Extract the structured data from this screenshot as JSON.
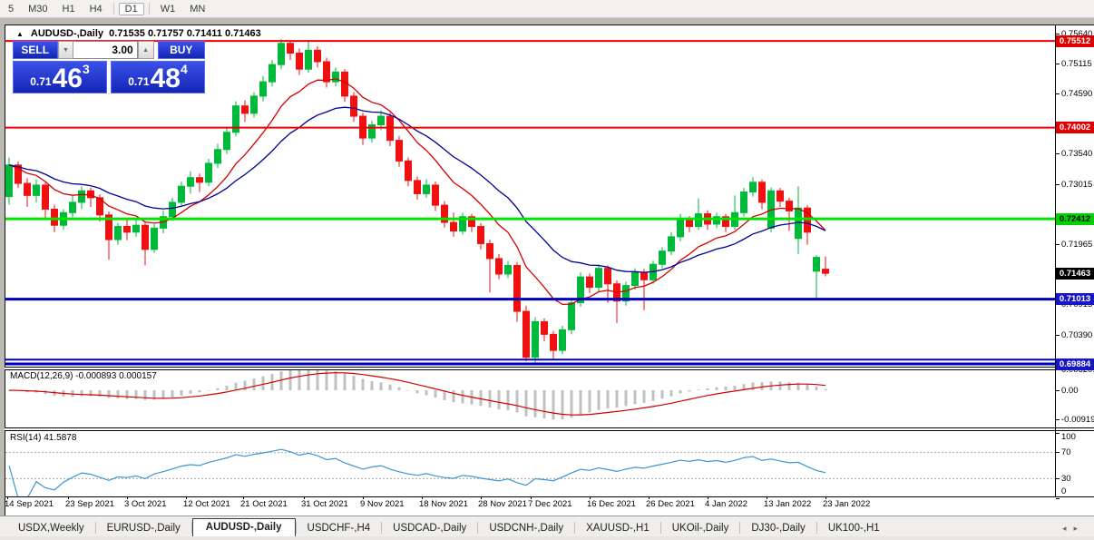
{
  "toolbar": {
    "timeframes": [
      "5",
      "M30",
      "H1",
      "H4",
      "D1",
      "W1",
      "MN"
    ],
    "active_timeframe": "D1"
  },
  "chart_window": {
    "menu_triangle_glyph": "▲",
    "title": "AUDUSD-,Daily",
    "ohlc_text": "0.71535 0.71757 0.71411 0.71463",
    "trade_panel": {
      "sell_label": "SELL",
      "buy_label": "BUY",
      "volume": "3.00",
      "spin_down_glyph": "▼",
      "spin_up_glyph": "▲",
      "sell_price": {
        "prefix": "0.71",
        "big": "46",
        "sup": "3"
      },
      "buy_price": {
        "prefix": "0.71",
        "big": "48",
        "sup": "4"
      }
    }
  },
  "chart_data": {
    "type": "candlestick",
    "symbol": "AUDUSD-",
    "timeframe": "Daily",
    "colors": {
      "up": "#00b93a",
      "down": "#f01010",
      "ma_fast": "#d40000",
      "ma_slow": "#000096",
      "macd_hist": "#c0c0c0",
      "macd_signal": "#d40000",
      "rsi_line": "#3a96d4"
    },
    "candles": [
      [
        0.728,
        0.7348,
        0.7266,
        0.7335
      ],
      [
        0.7335,
        0.7341,
        0.7295,
        0.7303
      ],
      [
        0.7303,
        0.7312,
        0.7262,
        0.7282
      ],
      [
        0.7282,
        0.731,
        0.727,
        0.73
      ],
      [
        0.73,
        0.7304,
        0.724,
        0.7258
      ],
      [
        0.7258,
        0.7266,
        0.7218,
        0.723
      ],
      [
        0.723,
        0.7258,
        0.7222,
        0.7252
      ],
      [
        0.7252,
        0.7282,
        0.7244,
        0.727
      ],
      [
        0.727,
        0.7298,
        0.7258,
        0.729
      ],
      [
        0.729,
        0.7296,
        0.7262,
        0.7278
      ],
      [
        0.7278,
        0.7284,
        0.7236,
        0.7248
      ],
      [
        0.7248,
        0.7254,
        0.717,
        0.7205
      ],
      [
        0.7205,
        0.7234,
        0.7196,
        0.7228
      ],
      [
        0.7228,
        0.724,
        0.7204,
        0.7218
      ],
      [
        0.7218,
        0.7242,
        0.721,
        0.723
      ],
      [
        0.723,
        0.7236,
        0.716,
        0.7188
      ],
      [
        0.7188,
        0.7232,
        0.7182,
        0.7225
      ],
      [
        0.7225,
        0.7256,
        0.7216,
        0.7245
      ],
      [
        0.7245,
        0.7278,
        0.7238,
        0.727
      ],
      [
        0.727,
        0.7306,
        0.7262,
        0.7298
      ],
      [
        0.7298,
        0.7324,
        0.7285,
        0.7313
      ],
      [
        0.7313,
        0.732,
        0.7288,
        0.7305
      ],
      [
        0.7305,
        0.7346,
        0.7298,
        0.7338
      ],
      [
        0.7338,
        0.7372,
        0.733,
        0.7362
      ],
      [
        0.7362,
        0.74,
        0.7354,
        0.7392
      ],
      [
        0.7392,
        0.7446,
        0.7385,
        0.7438
      ],
      [
        0.7438,
        0.7448,
        0.741,
        0.7425
      ],
      [
        0.7425,
        0.7462,
        0.7418,
        0.7455
      ],
      [
        0.7455,
        0.749,
        0.7446,
        0.748
      ],
      [
        0.748,
        0.7518,
        0.7472,
        0.751
      ],
      [
        0.751,
        0.7555,
        0.7502,
        0.7547
      ],
      [
        0.7547,
        0.7552,
        0.7518,
        0.753
      ],
      [
        0.753,
        0.7538,
        0.7492,
        0.7502
      ],
      [
        0.7502,
        0.755,
        0.7496,
        0.7535
      ],
      [
        0.7535,
        0.7542,
        0.7505,
        0.7515
      ],
      [
        0.7515,
        0.7522,
        0.747,
        0.748
      ],
      [
        0.748,
        0.7505,
        0.7472,
        0.7497
      ],
      [
        0.7497,
        0.7502,
        0.7445,
        0.7455
      ],
      [
        0.7455,
        0.7462,
        0.741,
        0.742
      ],
      [
        0.742,
        0.7426,
        0.737,
        0.7382
      ],
      [
        0.7382,
        0.7412,
        0.7374,
        0.7405
      ],
      [
        0.7405,
        0.743,
        0.7396,
        0.742
      ],
      [
        0.742,
        0.7426,
        0.7368,
        0.7378
      ],
      [
        0.7378,
        0.7386,
        0.7332,
        0.7342
      ],
      [
        0.7342,
        0.7348,
        0.7298,
        0.7308
      ],
      [
        0.7308,
        0.7315,
        0.7275,
        0.7285
      ],
      [
        0.7285,
        0.731,
        0.7278,
        0.73
      ],
      [
        0.73,
        0.7306,
        0.7255,
        0.7265
      ],
      [
        0.7265,
        0.7272,
        0.7226,
        0.7235
      ],
      [
        0.7235,
        0.7252,
        0.721,
        0.722
      ],
      [
        0.722,
        0.7252,
        0.7214,
        0.7245
      ],
      [
        0.7245,
        0.725,
        0.7218,
        0.7228
      ],
      [
        0.7228,
        0.7234,
        0.7188,
        0.7198
      ],
      [
        0.7198,
        0.7205,
        0.7113,
        0.7172
      ],
      [
        0.7172,
        0.718,
        0.7136,
        0.7145
      ],
      [
        0.7145,
        0.7168,
        0.7138,
        0.716
      ],
      [
        0.716,
        0.7166,
        0.7062,
        0.708
      ],
      [
        0.708,
        0.709,
        0.6993,
        0.7
      ],
      [
        0.7,
        0.707,
        0.6989,
        0.7062
      ],
      [
        0.7062,
        0.7068,
        0.7028,
        0.704
      ],
      [
        0.704,
        0.7046,
        0.6995,
        0.7012
      ],
      [
        0.7012,
        0.7055,
        0.7005,
        0.7048
      ],
      [
        0.7048,
        0.7102,
        0.704,
        0.7095
      ],
      [
        0.7095,
        0.7148,
        0.7088,
        0.714
      ],
      [
        0.714,
        0.7146,
        0.7112,
        0.7122
      ],
      [
        0.7122,
        0.7162,
        0.7115,
        0.7155
      ],
      [
        0.7155,
        0.716,
        0.7095,
        0.7128
      ],
      [
        0.7128,
        0.7134,
        0.706,
        0.7098
      ],
      [
        0.7098,
        0.7132,
        0.709,
        0.7125
      ],
      [
        0.7125,
        0.7155,
        0.7118,
        0.7148
      ],
      [
        0.7148,
        0.7154,
        0.7082,
        0.7135
      ],
      [
        0.7135,
        0.7168,
        0.7128,
        0.7162
      ],
      [
        0.7162,
        0.7192,
        0.7155,
        0.7185
      ],
      [
        0.7185,
        0.7218,
        0.7178,
        0.721
      ],
      [
        0.721,
        0.725,
        0.7202,
        0.724
      ],
      [
        0.724,
        0.7246,
        0.7218,
        0.7228
      ],
      [
        0.7228,
        0.7277,
        0.7222,
        0.725
      ],
      [
        0.725,
        0.7256,
        0.7222,
        0.7232
      ],
      [
        0.7232,
        0.7252,
        0.7225,
        0.7245
      ],
      [
        0.7245,
        0.725,
        0.7218,
        0.7228
      ],
      [
        0.7228,
        0.7282,
        0.7222,
        0.7252
      ],
      [
        0.7252,
        0.7295,
        0.7245,
        0.7288
      ],
      [
        0.7288,
        0.7314,
        0.728,
        0.7305
      ],
      [
        0.7305,
        0.731,
        0.7258,
        0.727
      ],
      [
        0.7225,
        0.7296,
        0.7218,
        0.729
      ],
      [
        0.729,
        0.7295,
        0.7262,
        0.7272
      ],
      [
        0.7272,
        0.7278,
        0.722,
        0.7255
      ],
      [
        0.7207,
        0.7298,
        0.718,
        0.726
      ],
      [
        0.726,
        0.7265,
        0.7196,
        0.7218
      ],
      [
        0.715,
        0.7178,
        0.7101,
        0.7174
      ],
      [
        0.71535,
        0.71757,
        0.71411,
        0.71463
      ]
    ],
    "levels": [
      {
        "price": 0.75512,
        "color": "#f00000",
        "w": 2
      },
      {
        "price": 0.74002,
        "color": "#f00000",
        "w": 2
      },
      {
        "price": 0.72412,
        "color": "#00e400",
        "w": 3
      },
      {
        "price": 0.71013,
        "color": "#0000c0",
        "w": 3
      },
      {
        "price": 0.6996,
        "color": "#0000c0",
        "w": 2
      },
      {
        "price": 0.69884,
        "color": "#0000c0",
        "w": 3
      }
    ],
    "y_ticks": [
      {
        "label": "0.75640",
        "price": 0.7564
      },
      {
        "label": "0.75115",
        "price": 0.75115
      },
      {
        "label": "0.74590",
        "price": 0.7459
      },
      {
        "label": "0.73540",
        "price": 0.7354
      },
      {
        "label": "0.73015",
        "price": 0.73015
      },
      {
        "label": "0.71965",
        "price": 0.71965
      },
      {
        "label": "0.70915",
        "price": 0.70915
      },
      {
        "label": "0.70390",
        "price": 0.7039
      }
    ],
    "markers": [
      {
        "label": "0.75512",
        "price": 0.75512,
        "bg": "#e00000",
        "fg": "#ffffff"
      },
      {
        "label": "0.74002",
        "price": 0.74002,
        "bg": "#e00000",
        "fg": "#ffffff"
      },
      {
        "label": "0.72412",
        "price": 0.72412,
        "bg": "#00d200",
        "fg": "#000000"
      },
      {
        "label": "0.71463",
        "price": 0.71463,
        "bg": "#000000",
        "fg": "#ffffff"
      },
      {
        "label": "0.71013",
        "price": 0.71013,
        "bg": "#1616c8",
        "fg": "#ffffff"
      },
      {
        "label": "0.69884",
        "price": 0.69884,
        "bg": "#1616c8",
        "fg": "#ffffff"
      }
    ],
    "x_ticks": [
      {
        "x": 8,
        "label": "14 Sep 2021"
      },
      {
        "x": 75,
        "label": "23 Sep 2021"
      },
      {
        "x": 140,
        "label": "3 Oct 2021"
      },
      {
        "x": 205,
        "label": "12 Oct 2021"
      },
      {
        "x": 268,
        "label": "21 Oct 2021"
      },
      {
        "x": 335,
        "label": "31 Oct 2021"
      },
      {
        "x": 400,
        "label": "9 Nov 2021"
      },
      {
        "x": 465,
        "label": "18 Nov 2021"
      },
      {
        "x": 530,
        "label": "28 Nov 2021"
      },
      {
        "x": 585,
        "label": "7 Dec 2021"
      },
      {
        "x": 650,
        "label": "16 Dec 2021"
      },
      {
        "x": 715,
        "label": "26 Dec 2021"
      },
      {
        "x": 780,
        "label": "4 Jan 2022"
      },
      {
        "x": 845,
        "label": "13 Jan 2022"
      },
      {
        "x": 910,
        "label": "23 Jan 2022"
      }
    ]
  },
  "macd": {
    "label": "MACD(12,26,9) -0.000893 0.000157",
    "fast": 12,
    "slow": 26,
    "signal": 9,
    "axis": [
      {
        "v": 0.006201,
        "label": "0.006201"
      },
      {
        "v": 0.0,
        "label": "0.00"
      },
      {
        "v": -0.00919,
        "label": "-0.00919"
      }
    ]
  },
  "rsi": {
    "label": "RSI(14) 41.5878",
    "period": 14,
    "value": 41.5878,
    "axis": [
      {
        "v": 100,
        "label": "100"
      },
      {
        "v": 70,
        "label": "70"
      },
      {
        "v": 30,
        "label": "30"
      },
      {
        "v": 0,
        "label": "0"
      }
    ],
    "guide_levels": [
      70,
      30
    ]
  },
  "tabs": {
    "items": [
      "USDX,Weekly",
      "EURUSD-,Daily",
      "AUDUSD-,Daily",
      "USDCHF-,H4",
      "USDCAD-,Daily",
      "USDCNH-,Daily",
      "XAUUSD-,H1",
      "UKOil-,Daily",
      "DJ30-,Daily",
      "UK100-,H1"
    ],
    "active": "AUDUSD-,Daily",
    "scroll_left_glyph": "◂",
    "scroll_right_glyph": "▸"
  }
}
